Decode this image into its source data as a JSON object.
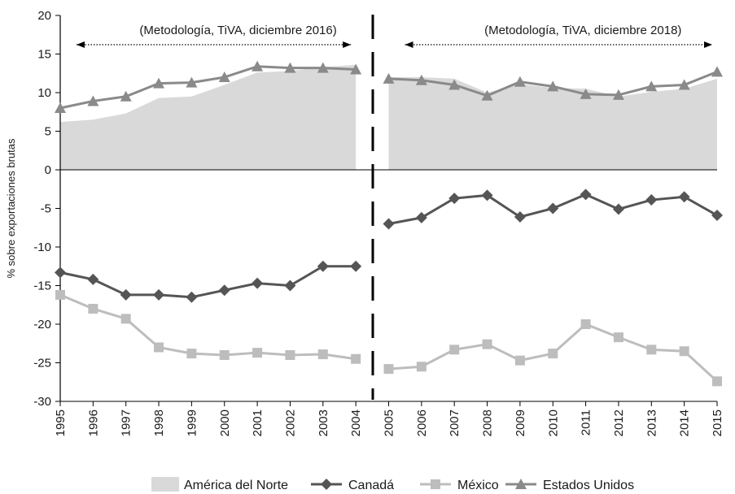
{
  "chart_data": {
    "type": "line",
    "ylabel": "% sobre exportaciones brutas",
    "ylim": [
      -30,
      20
    ],
    "yticks": [
      20,
      15,
      10,
      5,
      0,
      -5,
      -10,
      -15,
      -20,
      -25,
      -30
    ],
    "ytick_labels": [
      "20",
      "15",
      "10",
      "5",
      "0",
      "-5",
      "-10",
      "-15",
      "-20",
      "-25",
      "-30"
    ],
    "categories": [
      "1995",
      "1996",
      "1997",
      "1998",
      "1999",
      "2000",
      "2001",
      "2002",
      "2003",
      "2004",
      "2005",
      "2006",
      "2007",
      "2008",
      "2009",
      "2010",
      "2011",
      "2012",
      "2013",
      "2014",
      "2015"
    ],
    "break_after": "2004",
    "annotations": [
      {
        "text": "(Metodología, TiVA, diciembre 2016)",
        "from": "1995",
        "to": "2004"
      },
      {
        "text": "(Metodología, TiVA, diciembre 2018)",
        "from": "2005",
        "to": "2015"
      }
    ],
    "series": [
      {
        "name": "América del Norte",
        "kind": "area",
        "color": "#d9d9d9",
        "values": [
          6.2,
          6.5,
          7.3,
          9.3,
          9.5,
          11.0,
          12.6,
          12.8,
          13.3,
          13.6,
          12.0,
          12.0,
          11.8,
          10.0,
          11.1,
          10.6,
          10.5,
          9.5,
          10.1,
          10.5,
          11.8
        ]
      },
      {
        "name": "Canadá",
        "kind": "line",
        "marker": "diamond",
        "color": "#555555",
        "values": [
          -13.3,
          -14.2,
          -16.2,
          -16.2,
          -16.5,
          -15.6,
          -14.7,
          -15.0,
          -12.5,
          -12.5,
          -7.0,
          -6.2,
          -3.7,
          -3.3,
          -6.1,
          -5.0,
          -3.2,
          -5.1,
          -3.9,
          -3.5,
          -5.9
        ]
      },
      {
        "name": "México",
        "kind": "line",
        "marker": "square",
        "color": "#bdbdbd",
        "values": [
          -16.2,
          -18.0,
          -19.3,
          -23.0,
          -23.8,
          -24.0,
          -23.7,
          -24.0,
          -23.9,
          -24.5,
          -25.8,
          -25.5,
          -23.3,
          -22.6,
          -24.7,
          -23.8,
          -20.0,
          -21.7,
          -23.3,
          -23.5,
          -27.4
        ]
      },
      {
        "name": "Estados Unidos",
        "kind": "line",
        "marker": "triangle",
        "color": "#8a8a8a",
        "values": [
          8.0,
          8.9,
          9.5,
          11.2,
          11.3,
          12.0,
          13.4,
          13.2,
          13.2,
          13.0,
          11.8,
          11.6,
          11.0,
          9.6,
          11.4,
          10.8,
          9.8,
          9.7,
          10.8,
          11.0,
          12.7
        ]
      }
    ]
  }
}
